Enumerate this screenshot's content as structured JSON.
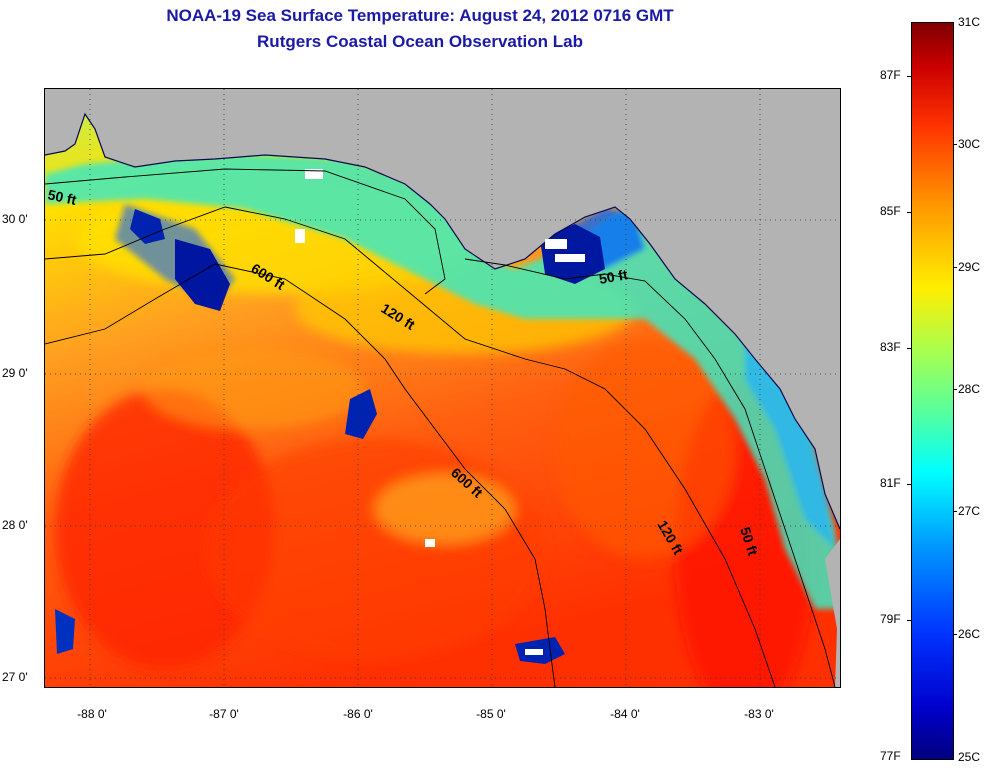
{
  "title": {
    "line1": "NOAA-19 Sea Surface Temperature:  August 24, 2012 0716 GMT",
    "line2": "Rutgers Coastal Ocean Observation Lab"
  },
  "map": {
    "latitude_ticks": [
      "30 0'",
      "29 0'",
      "28 0'",
      "27 0'"
    ],
    "longitude_ticks": [
      "-88 0'",
      "-87 0'",
      "-86 0'",
      "-85 0'",
      "-84 0'",
      "-83 0'"
    ],
    "contour_labels": [
      "50 ft",
      "600 ft",
      "120 ft",
      "50 ft",
      "600 ft",
      "120 ft",
      "50 ft"
    ],
    "land_color": "#b3b3b3"
  },
  "colorbar": {
    "celsius_labels": [
      "31C",
      "30C",
      "29C",
      "28C",
      "27C",
      "26C",
      "25C"
    ],
    "fahrenheit_labels": [
      "87F",
      "85F",
      "83F",
      "81F",
      "79F",
      "77F"
    ],
    "range_c": [
      25,
      31
    ]
  }
}
